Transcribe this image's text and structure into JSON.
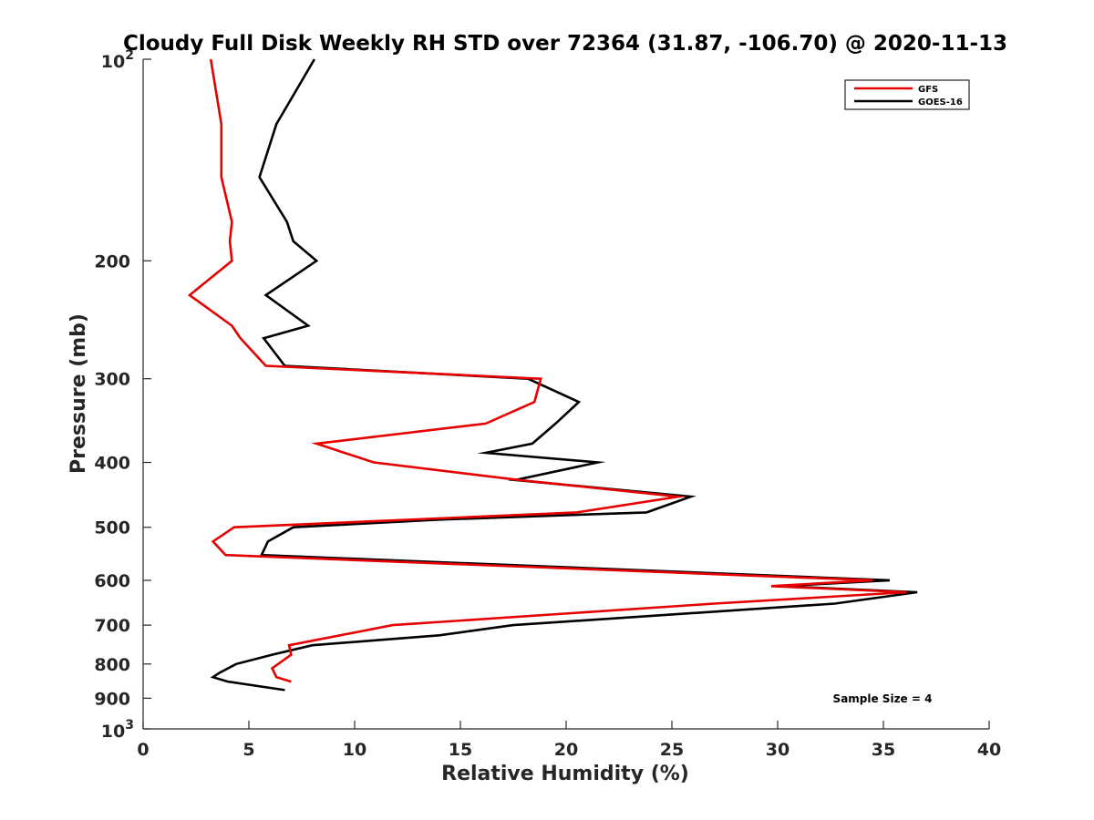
{
  "chart_data": {
    "type": "line",
    "title": "Cloudy Full Disk Weekly RH STD over 72364 (31.87, -106.70) @ 2020-11-13",
    "xlabel": "Relative Humidity (%)",
    "ylabel": "Pressure (mb)",
    "xlim": [
      0,
      40
    ],
    "ylim": [
      100,
      1000
    ],
    "y_scale": "log",
    "y_reversed": true,
    "grid": false,
    "legend_position": "top-right",
    "x_ticks": [
      "0",
      "5",
      "10",
      "15",
      "20",
      "25",
      "30",
      "35",
      "40"
    ],
    "y_ticks": [
      {
        "value": 100,
        "label": "10",
        "sup": "2"
      },
      {
        "value": 200,
        "label": "200"
      },
      {
        "value": 300,
        "label": "300"
      },
      {
        "value": 400,
        "label": "400"
      },
      {
        "value": 500,
        "label": "500"
      },
      {
        "value": 600,
        "label": "600"
      },
      {
        "value": 700,
        "label": "700"
      },
      {
        "value": 800,
        "label": "800"
      },
      {
        "value": 900,
        "label": "900"
      },
      {
        "value": 1000,
        "label": "10",
        "sup": "3"
      }
    ],
    "annotation": "Sample Size = 4",
    "series": [
      {
        "name": "GFS",
        "color": "#e60000",
        "points": [
          [
            3.2,
            100
          ],
          [
            3.7,
            125
          ],
          [
            3.7,
            150
          ],
          [
            4.2,
            175
          ],
          [
            4.1,
            187
          ],
          [
            4.2,
            200
          ],
          [
            2.2,
            225
          ],
          [
            4.2,
            250
          ],
          [
            4.6,
            261
          ],
          [
            5.8,
            287
          ],
          [
            18.8,
            300
          ],
          [
            18.5,
            325
          ],
          [
            16.2,
            350
          ],
          [
            8.2,
            375
          ],
          [
            10.9,
            400
          ],
          [
            17.8,
            425
          ],
          [
            25.3,
            450
          ],
          [
            20.5,
            475
          ],
          [
            4.3,
            500
          ],
          [
            3.3,
            525
          ],
          [
            3.9,
            550
          ],
          [
            34.5,
            600
          ],
          [
            29.7,
            612
          ],
          [
            36.1,
            625
          ],
          [
            27.0,
            650
          ],
          [
            11.8,
            700
          ],
          [
            6.9,
            750
          ],
          [
            7.0,
            775
          ],
          [
            6.1,
            812
          ],
          [
            6.3,
            837
          ],
          [
            7.0,
            850
          ]
        ]
      },
      {
        "name": "GOES-16",
        "color": "#000000",
        "points": [
          [
            8.1,
            100
          ],
          [
            6.3,
            125
          ],
          [
            5.5,
            150
          ],
          [
            6.8,
            175
          ],
          [
            7.1,
            187
          ],
          [
            8.2,
            200
          ],
          [
            5.8,
            225
          ],
          [
            7.8,
            250
          ],
          [
            5.7,
            261
          ],
          [
            6.7,
            287
          ],
          [
            18.2,
            300
          ],
          [
            20.6,
            325
          ],
          [
            19.5,
            350
          ],
          [
            18.4,
            375
          ],
          [
            16.2,
            387
          ],
          [
            21.5,
            400
          ],
          [
            17.6,
            425
          ],
          [
            25.9,
            450
          ],
          [
            23.8,
            475
          ],
          [
            14.0,
            487
          ],
          [
            7.1,
            500
          ],
          [
            5.9,
            525
          ],
          [
            5.6,
            550
          ],
          [
            35.3,
            600
          ],
          [
            30.1,
            612
          ],
          [
            36.6,
            625
          ],
          [
            32.7,
            650
          ],
          [
            17.5,
            700
          ],
          [
            14.0,
            725
          ],
          [
            8.0,
            750
          ],
          [
            6.1,
            775
          ],
          [
            4.4,
            800
          ],
          [
            3.6,
            825
          ],
          [
            3.3,
            837
          ],
          [
            4.0,
            850
          ],
          [
            6.7,
            875
          ]
        ]
      }
    ]
  }
}
